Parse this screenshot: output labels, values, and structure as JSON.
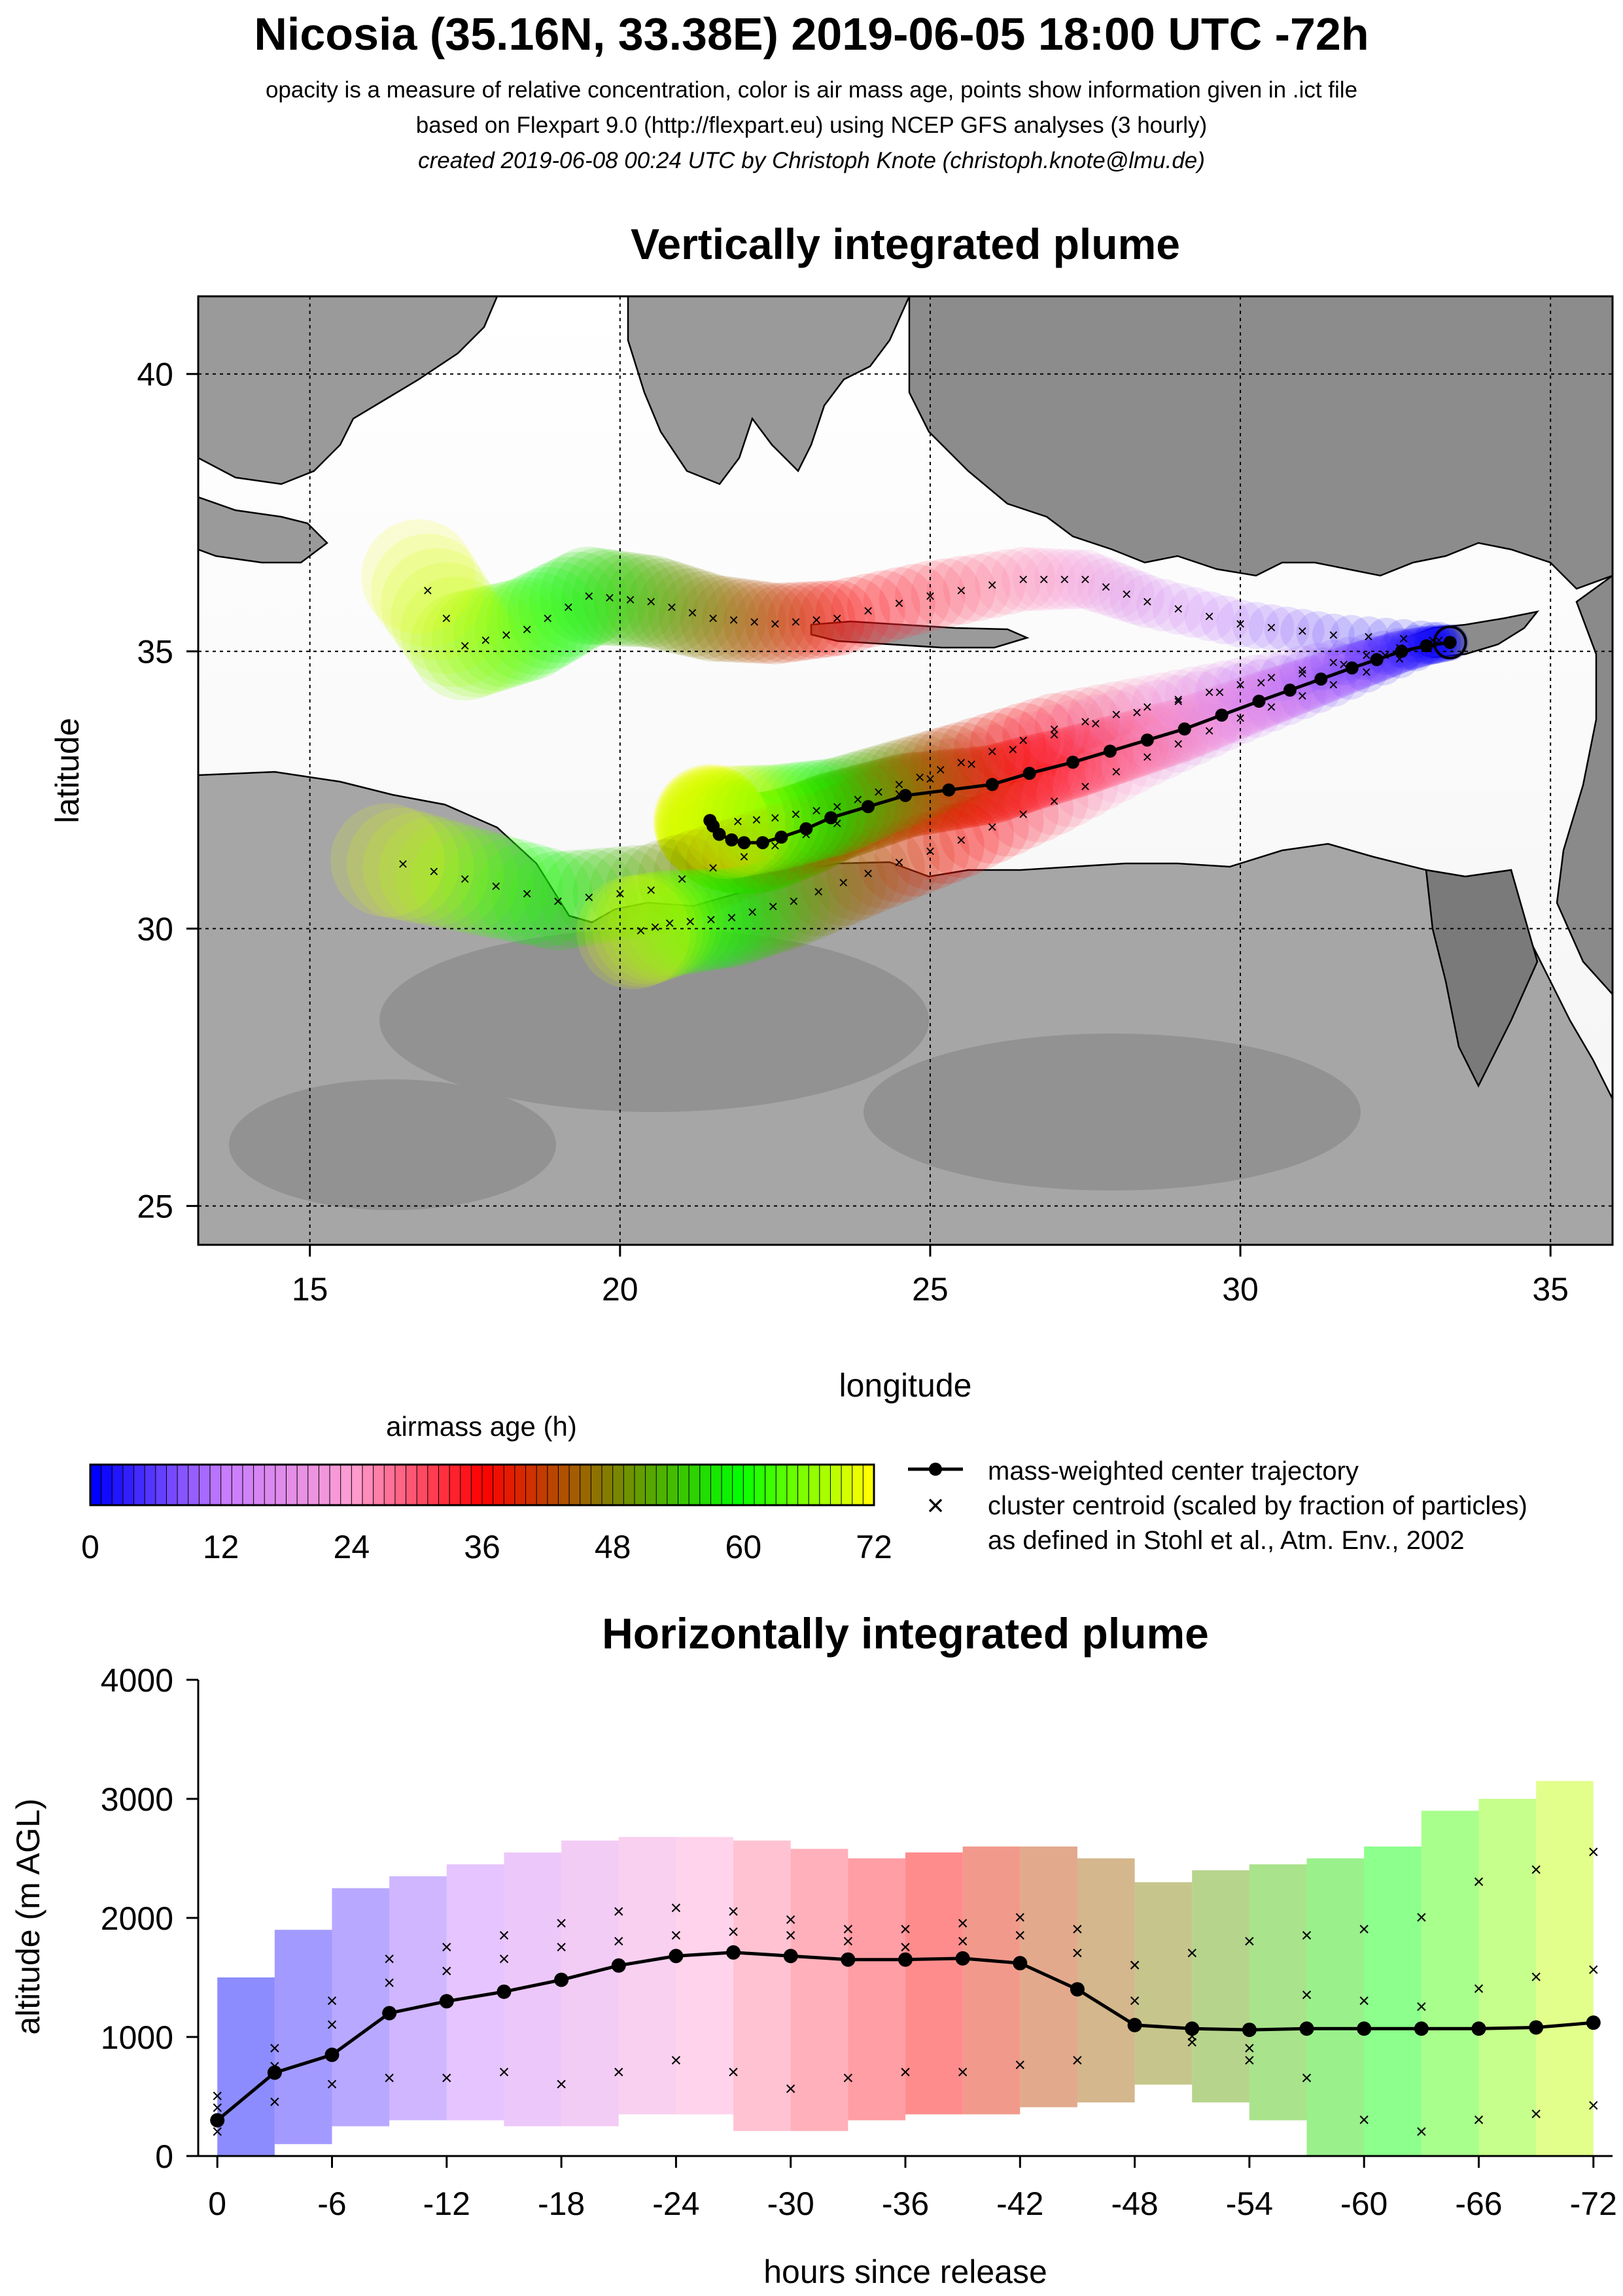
{
  "header": {
    "title": "Nicosia (35.16N, 33.38E) 2019-06-05 18:00 UTC -72h",
    "line1": "opacity is a measure of relative concentration, color is air mass age, points show information given in .ict file",
    "line2": "based on Flexpart 9.0 (http://flexpart.eu) using NCEP GFS analyses (3 hourly)",
    "line3": "created 2019-06-08 00:24 UTC by Christoph Knote (christoph.knote@lmu.de)"
  },
  "colors": {
    "age_ramp": [
      "#0000ff",
      "#c77cff",
      "#ff9ed2",
      "#ff0000",
      "#808000",
      "#00ff00",
      "#ffff00"
    ],
    "land": "#8c8c8c",
    "sea": "#ffffff",
    "trajectory": "#000000"
  },
  "chart_data": [
    {
      "type": "map",
      "title": "Vertically integrated plume",
      "xlabel": "longitude",
      "ylabel": "latitude",
      "xlim": [
        13.2,
        36.0
      ],
      "ylim": [
        24.3,
        41.4
      ],
      "xticks": [
        15,
        20,
        25,
        30,
        35
      ],
      "yticks": [
        25,
        30,
        35,
        40
      ],
      "grid": true,
      "release_point": {
        "lon": 33.38,
        "lat": 35.16
      },
      "center_trajectory": {
        "lon": [
          33.38,
          33.0,
          32.6,
          32.2,
          31.8,
          31.3,
          30.8,
          30.3,
          29.7,
          29.1,
          28.5,
          27.9,
          27.3,
          26.6,
          26.0,
          25.3,
          24.6,
          24.0,
          23.4,
          23.0,
          22.6,
          22.3,
          22.0,
          21.8,
          21.6,
          21.5,
          21.45
        ],
        "lat": [
          35.16,
          35.1,
          35.0,
          34.85,
          34.7,
          34.5,
          34.3,
          34.1,
          33.85,
          33.6,
          33.4,
          33.2,
          33.0,
          32.8,
          32.6,
          32.5,
          32.4,
          32.2,
          32.0,
          31.8,
          31.65,
          31.55,
          31.55,
          31.6,
          31.7,
          31.85,
          31.95
        ]
      },
      "cluster_tracks": [
        {
          "lon": [
            33.2,
            31.5,
            30.0,
            28.5,
            27.5,
            26.5,
            25.0,
            23.5,
            22.5,
            21.5,
            20.5,
            19.5,
            18.5,
            17.5,
            16.6
          ],
          "lat": [
            35.2,
            35.3,
            35.5,
            35.9,
            36.3,
            36.3,
            36.0,
            35.6,
            35.5,
            35.6,
            35.9,
            36.0,
            35.4,
            35.1,
            36.6
          ]
        },
        {
          "lon": [
            33.0,
            31.0,
            29.0,
            27.0,
            25.0,
            23.5,
            22.0,
            20.5,
            19.0,
            17.5,
            16.0
          ],
          "lat": [
            35.1,
            34.6,
            34.1,
            33.5,
            32.7,
            31.9,
            31.3,
            30.7,
            30.5,
            30.9,
            31.3
          ]
        },
        {
          "lon": [
            33.1,
            31.5,
            30.0,
            28.5,
            27.0,
            25.5,
            24.0,
            22.8,
            21.8,
            20.8,
            20.1
          ],
          "lat": [
            35.1,
            34.4,
            33.8,
            33.1,
            32.3,
            31.6,
            31.0,
            30.5,
            30.2,
            30.1,
            29.9
          ]
        },
        {
          "lon": [
            33.1,
            31.5,
            30.0,
            28.5,
            27.0,
            25.5,
            24.5,
            23.5,
            22.5,
            21.6
          ],
          "lat": [
            35.2,
            34.8,
            34.4,
            34.0,
            33.6,
            33.0,
            32.6,
            32.2,
            32.0,
            31.9
          ]
        }
      ]
    },
    {
      "type": "heatmap",
      "title": "airmass age (h)",
      "ticks": [
        0,
        12,
        24,
        36,
        48,
        60,
        72
      ]
    },
    {
      "type": "legend",
      "entries": [
        {
          "symbol": "line-dot",
          "label": "mass-weighted center trajectory"
        },
        {
          "symbol": "cross",
          "label": "cluster centroid (scaled by fraction of particles)"
        },
        {
          "symbol": "none",
          "label": "as defined in Stohl et al., Atm. Env., 2002"
        }
      ]
    },
    {
      "type": "line",
      "title": "Horizontally integrated plume",
      "xlabel": "hours since release",
      "ylabel": "altitude (m AGL)",
      "xlim": [
        1,
        -73
      ],
      "ylim": [
        0,
        4000
      ],
      "xticks": [
        0,
        -6,
        -12,
        -18,
        -24,
        -30,
        -36,
        -42,
        -48,
        -54,
        -60,
        -66,
        -72
      ],
      "yticks": [
        0,
        1000,
        2000,
        3000,
        4000
      ],
      "series": [
        {
          "name": "mass-weighted center trajectory",
          "x": [
            0,
            -3,
            -6,
            -9,
            -12,
            -15,
            -18,
            -21,
            -24,
            -27,
            -30,
            -33,
            -36,
            -39,
            -42,
            -45,
            -48,
            -51,
            -54,
            -57,
            -60,
            -63,
            -66,
            -69,
            -72
          ],
          "y": [
            300,
            700,
            850,
            1200,
            1300,
            1380,
            1480,
            1600,
            1680,
            1710,
            1680,
            1650,
            1650,
            1660,
            1620,
            1400,
            1100,
            1070,
            1060,
            1070,
            1070,
            1070,
            1070,
            1080,
            1120
          ]
        },
        {
          "x": [
            0,
            -3,
            -6,
            -9,
            -12,
            -15,
            -18,
            -21,
            -24,
            -27,
            -30,
            -33,
            -36,
            -39,
            -42,
            -45,
            -48,
            -51,
            -54,
            -57,
            -60,
            -63,
            -66,
            -69,
            -72
          ],
          "y": [
            500,
            900,
            1300,
            1650,
            1750,
            1850,
            1950,
            2050,
            2080,
            2050,
            1980,
            1900,
            1900,
            1950,
            2000,
            1900,
            1600,
            1000,
            800,
            650,
            300,
            200,
            300,
            350,
            420
          ]
        },
        {
          "x": [
            0,
            -3,
            -6,
            -9,
            -12,
            -15,
            -18,
            -21,
            -24,
            -27,
            -30,
            -33,
            -36,
            -39,
            -42,
            -45,
            -48,
            -51,
            -54,
            -57,
            -60,
            -63,
            -66,
            -69,
            -72
          ],
          "y": [
            200,
            450,
            600,
            650,
            650,
            700,
            600,
            700,
            800,
            700,
            560,
            650,
            700,
            700,
            760,
            800,
            1600,
            1700,
            1800,
            1850,
            1900,
            2000,
            2300,
            2400,
            2550
          ]
        },
        {
          "x": [
            0,
            -3,
            -6,
            -9,
            -12,
            -15,
            -18,
            -21,
            -24,
            -27,
            -30,
            -33,
            -36,
            -39,
            -42,
            -45,
            -48,
            -51,
            -54,
            -57,
            -60,
            -63,
            -66,
            -69,
            -72
          ],
          "y": [
            400,
            750,
            1100,
            1450,
            1550,
            1650,
            1750,
            1800,
            1850,
            1880,
            1850,
            1800,
            1750,
            1800,
            1850,
            1700,
            1300,
            950,
            900,
            1350,
            1300,
            1250,
            1400,
            1500,
            1560
          ]
        }
      ]
    }
  ]
}
